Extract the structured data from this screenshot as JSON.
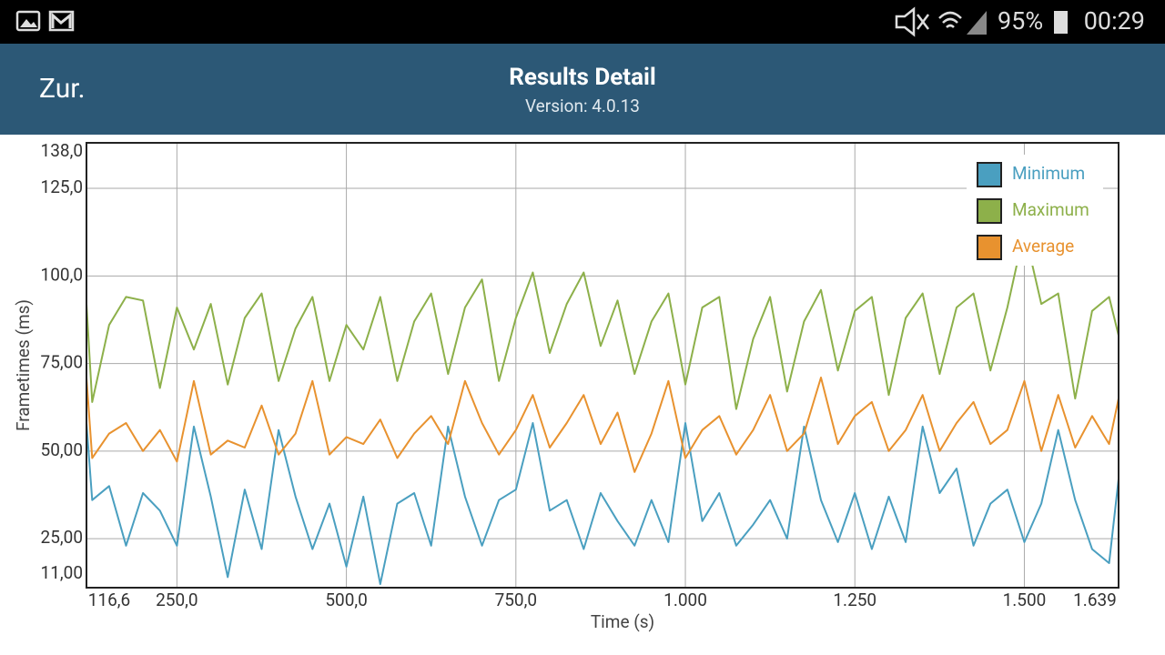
{
  "status_bar": {
    "battery": "95%",
    "time": "00:29"
  },
  "header": {
    "back": "Zur.",
    "title": "Results Detail",
    "subtitle": "Version: 4.0.13"
  },
  "chart_data": {
    "type": "line",
    "xlabel": "Time (s)",
    "ylabel": "Frametimes (ms)",
    "x": [
      116.6,
      125,
      150,
      175,
      200,
      225,
      250,
      275,
      300,
      325,
      350,
      375,
      400,
      425,
      450,
      475,
      500,
      525,
      550,
      575,
      600,
      625,
      650,
      675,
      700,
      725,
      750,
      775,
      800,
      825,
      850,
      875,
      900,
      925,
      950,
      975,
      1000,
      1025,
      1050,
      1075,
      1100,
      1125,
      1150,
      1175,
      1200,
      1225,
      1250,
      1275,
      1300,
      1325,
      1350,
      1375,
      1400,
      1425,
      1450,
      1475,
      1500,
      1525,
      1550,
      1575,
      1600,
      1625,
      1639
    ],
    "series": [
      {
        "name": "Minimum",
        "color": "#4a9fc0",
        "values": [
          58,
          36,
          40,
          23,
          38,
          33,
          23,
          57,
          37,
          14,
          39,
          22,
          56,
          37,
          22,
          35,
          17,
          37,
          12,
          35,
          38,
          23,
          57,
          37,
          23,
          36,
          39,
          58,
          33,
          36,
          22,
          38,
          30,
          23,
          36,
          24,
          58,
          30,
          38,
          23,
          29,
          36,
          25,
          57,
          36,
          24,
          38,
          22,
          37,
          24,
          57,
          38,
          45,
          23,
          35,
          39,
          24,
          35,
          56,
          36,
          22,
          18,
          42
        ]
      },
      {
        "name": "Maximum",
        "color": "#8db04a",
        "values": [
          92,
          64,
          86,
          94,
          93,
          68,
          91,
          79,
          92,
          69,
          88,
          95,
          70,
          85,
          94,
          70,
          86,
          79,
          94,
          70,
          87,
          95,
          72,
          91,
          99,
          70,
          88,
          101,
          78,
          92,
          101,
          80,
          93,
          72,
          87,
          95,
          69,
          91,
          94,
          62,
          82,
          94,
          67,
          87,
          96,
          73,
          90,
          94,
          66,
          88,
          95,
          72,
          91,
          95,
          73,
          91,
          113,
          92,
          95,
          65,
          90,
          94,
          83
        ]
      },
      {
        "name": "Average",
        "color": "#e8922f",
        "values": [
          71,
          48,
          55,
          58,
          50,
          56,
          47,
          70,
          49,
          53,
          51,
          63,
          49,
          55,
          70,
          49,
          54,
          52,
          59,
          48,
          55,
          60,
          52,
          70,
          58,
          49,
          56,
          66,
          51,
          58,
          66,
          52,
          61,
          44,
          55,
          70,
          48,
          56,
          60,
          49,
          56,
          66,
          50,
          55,
          71,
          52,
          60,
          64,
          50,
          56,
          66,
          50,
          58,
          64,
          52,
          56,
          70,
          50,
          66,
          51,
          60,
          52,
          65
        ]
      }
    ],
    "xlim": [
      116.6,
      1639
    ],
    "xticks": [
      {
        "value": 116.6,
        "label": "116,6"
      },
      {
        "value": 250,
        "label": "250,0"
      },
      {
        "value": 500,
        "label": "500,0"
      },
      {
        "value": 750,
        "label": "750,0"
      },
      {
        "value": 1000,
        "label": "1.000"
      },
      {
        "value": 1250,
        "label": "1.250"
      },
      {
        "value": 1500,
        "label": "1.500"
      },
      {
        "value": 1639,
        "label": "1.639"
      }
    ],
    "ylim": [
      11,
      138
    ],
    "yticks": [
      {
        "value": 11,
        "label": "11,00"
      },
      {
        "value": 25,
        "label": "25,00"
      },
      {
        "value": 50,
        "label": "50,00"
      },
      {
        "value": 75,
        "label": "75,00"
      },
      {
        "value": 100,
        "label": "100,0"
      },
      {
        "value": 125,
        "label": "125,0"
      },
      {
        "value": 138,
        "label": "138,0"
      }
    ],
    "grid": true,
    "legend": "top-right"
  }
}
